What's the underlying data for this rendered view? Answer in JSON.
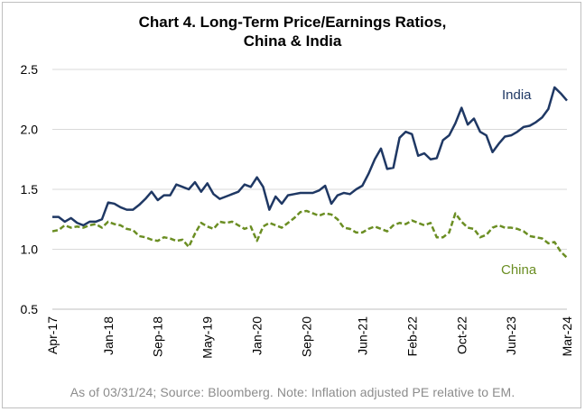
{
  "chart_data": {
    "type": "line",
    "title": "Chart 4. Long-Term Price/Earnings Ratios,\nChina & India",
    "footnote": "As of 03/31/24; Source: Bloomberg. Note: Inflation adjusted PE relative to EM.",
    "xlabel": "",
    "ylabel": "",
    "ylim": [
      0.5,
      2.5
    ],
    "y_ticks": [
      "0.5",
      "1.0",
      "1.5",
      "2.0",
      "2.5"
    ],
    "x_tick_labels": [
      "Apr-17",
      "Jan-18",
      "Sep-18",
      "May-19",
      "Jan-20",
      "Sep-20",
      "Jun-21",
      "Feb-22",
      "Oct-22",
      "Jun-23",
      "Mar-24"
    ],
    "grid": true,
    "colors": {
      "India": "#1f3864",
      "China": "#6b8e23"
    },
    "series": [
      {
        "name": "India",
        "style": "solid",
        "points": [
          [
            "2017-04",
            1.27
          ],
          [
            "2017-05",
            1.27
          ],
          [
            "2017-06",
            1.23
          ],
          [
            "2017-07",
            1.26
          ],
          [
            "2017-08",
            1.22
          ],
          [
            "2017-09",
            1.2
          ],
          [
            "2017-10",
            1.23
          ],
          [
            "2017-11",
            1.23
          ],
          [
            "2017-12",
            1.25
          ],
          [
            "2018-01",
            1.39
          ],
          [
            "2018-02",
            1.38
          ],
          [
            "2018-03",
            1.35
          ],
          [
            "2018-04",
            1.33
          ],
          [
            "2018-05",
            1.33
          ],
          [
            "2018-06",
            1.37
          ],
          [
            "2018-07",
            1.42
          ],
          [
            "2018-08",
            1.48
          ],
          [
            "2018-09",
            1.41
          ],
          [
            "2018-10",
            1.45
          ],
          [
            "2018-11",
            1.45
          ],
          [
            "2018-12",
            1.54
          ],
          [
            "2019-01",
            1.52
          ],
          [
            "2019-02",
            1.5
          ],
          [
            "2019-03",
            1.56
          ],
          [
            "2019-04",
            1.48
          ],
          [
            "2019-05",
            1.55
          ],
          [
            "2019-06",
            1.46
          ],
          [
            "2019-07",
            1.42
          ],
          [
            "2019-08",
            1.44
          ],
          [
            "2019-09",
            1.46
          ],
          [
            "2019-10",
            1.48
          ],
          [
            "2019-11",
            1.54
          ],
          [
            "2019-12",
            1.52
          ],
          [
            "2020-01",
            1.6
          ],
          [
            "2020-02",
            1.52
          ],
          [
            "2020-03",
            1.33
          ],
          [
            "2020-04",
            1.44
          ],
          [
            "2020-05",
            1.38
          ],
          [
            "2020-06",
            1.45
          ],
          [
            "2020-07",
            1.46
          ],
          [
            "2020-08",
            1.47
          ],
          [
            "2020-09",
            1.47
          ],
          [
            "2020-10",
            1.47
          ],
          [
            "2020-11",
            1.49
          ],
          [
            "2020-12",
            1.53
          ],
          [
            "2021-01",
            1.38
          ],
          [
            "2021-02",
            1.45
          ],
          [
            "2021-03",
            1.47
          ],
          [
            "2021-04",
            1.46
          ],
          [
            "2021-05",
            1.5
          ],
          [
            "2021-06",
            1.53
          ],
          [
            "2021-07",
            1.63
          ],
          [
            "2021-08",
            1.75
          ],
          [
            "2021-09",
            1.84
          ],
          [
            "2021-10",
            1.67
          ],
          [
            "2021-11",
            1.68
          ],
          [
            "2021-12",
            1.93
          ],
          [
            "2022-01",
            1.98
          ],
          [
            "2022-02",
            1.96
          ],
          [
            "2022-03",
            1.78
          ],
          [
            "2022-04",
            1.8
          ],
          [
            "2022-05",
            1.75
          ],
          [
            "2022-06",
            1.76
          ],
          [
            "2022-07",
            1.91
          ],
          [
            "2022-08",
            1.95
          ],
          [
            "2022-09",
            2.05
          ],
          [
            "2022-10",
            2.18
          ],
          [
            "2022-11",
            2.04
          ],
          [
            "2022-12",
            2.09
          ],
          [
            "2023-01",
            1.98
          ],
          [
            "2023-02",
            1.95
          ],
          [
            "2023-03",
            1.81
          ],
          [
            "2023-04",
            1.88
          ],
          [
            "2023-05",
            1.94
          ],
          [
            "2023-06",
            1.95
          ],
          [
            "2023-07",
            1.98
          ],
          [
            "2023-08",
            2.02
          ],
          [
            "2023-09",
            2.03
          ],
          [
            "2023-10",
            2.06
          ],
          [
            "2023-11",
            2.1
          ],
          [
            "2023-12",
            2.17
          ],
          [
            "2024-01",
            2.35
          ],
          [
            "2024-02",
            2.3
          ],
          [
            "2024-03",
            2.24
          ]
        ]
      },
      {
        "name": "China",
        "style": "dashed",
        "points": [
          [
            "2017-04",
            1.15
          ],
          [
            "2017-05",
            1.16
          ],
          [
            "2017-06",
            1.2
          ],
          [
            "2017-07",
            1.18
          ],
          [
            "2017-08",
            1.19
          ],
          [
            "2017-09",
            1.18
          ],
          [
            "2017-10",
            1.2
          ],
          [
            "2017-11",
            1.21
          ],
          [
            "2017-12",
            1.18
          ],
          [
            "2018-01",
            1.23
          ],
          [
            "2018-02",
            1.21
          ],
          [
            "2018-03",
            1.2
          ],
          [
            "2018-04",
            1.17
          ],
          [
            "2018-05",
            1.16
          ],
          [
            "2018-06",
            1.11
          ],
          [
            "2018-07",
            1.1
          ],
          [
            "2018-08",
            1.08
          ],
          [
            "2018-09",
            1.07
          ],
          [
            "2018-10",
            1.1
          ],
          [
            "2018-11",
            1.09
          ],
          [
            "2018-12",
            1.07
          ],
          [
            "2019-01",
            1.08
          ],
          [
            "2019-02",
            1.02
          ],
          [
            "2019-03",
            1.13
          ],
          [
            "2019-04",
            1.22
          ],
          [
            "2019-05",
            1.19
          ],
          [
            "2019-06",
            1.17
          ],
          [
            "2019-07",
            1.23
          ],
          [
            "2019-08",
            1.22
          ],
          [
            "2019-09",
            1.23
          ],
          [
            "2019-10",
            1.2
          ],
          [
            "2019-11",
            1.17
          ],
          [
            "2019-12",
            1.19
          ],
          [
            "2020-01",
            1.07
          ],
          [
            "2020-02",
            1.19
          ],
          [
            "2020-03",
            1.22
          ],
          [
            "2020-04",
            1.2
          ],
          [
            "2020-05",
            1.18
          ],
          [
            "2020-06",
            1.22
          ],
          [
            "2020-07",
            1.26
          ],
          [
            "2020-08",
            1.31
          ],
          [
            "2020-09",
            1.32
          ],
          [
            "2020-10",
            1.3
          ],
          [
            "2020-11",
            1.28
          ],
          [
            "2020-12",
            1.3
          ],
          [
            "2021-01",
            1.29
          ],
          [
            "2021-02",
            1.25
          ],
          [
            "2021-03",
            1.18
          ],
          [
            "2021-04",
            1.17
          ],
          [
            "2021-05",
            1.14
          ],
          [
            "2021-06",
            1.14
          ],
          [
            "2021-07",
            1.17
          ],
          [
            "2021-08",
            1.19
          ],
          [
            "2021-09",
            1.17
          ],
          [
            "2021-10",
            1.15
          ],
          [
            "2021-11",
            1.2
          ],
          [
            "2021-12",
            1.22
          ],
          [
            "2022-01",
            1.21
          ],
          [
            "2022-02",
            1.24
          ],
          [
            "2022-03",
            1.22
          ],
          [
            "2022-04",
            1.2
          ],
          [
            "2022-05",
            1.22
          ],
          [
            "2022-06",
            1.1
          ],
          [
            "2022-07",
            1.1
          ],
          [
            "2022-08",
            1.14
          ],
          [
            "2022-09",
            1.3
          ],
          [
            "2022-10",
            1.23
          ],
          [
            "2022-11",
            1.18
          ],
          [
            "2022-12",
            1.17
          ],
          [
            "2023-01",
            1.1
          ],
          [
            "2023-02",
            1.12
          ],
          [
            "2023-03",
            1.18
          ],
          [
            "2023-04",
            1.2
          ],
          [
            "2023-05",
            1.18
          ],
          [
            "2023-06",
            1.18
          ],
          [
            "2023-07",
            1.17
          ],
          [
            "2023-08",
            1.15
          ],
          [
            "2023-09",
            1.11
          ],
          [
            "2023-10",
            1.1
          ],
          [
            "2023-11",
            1.09
          ],
          [
            "2023-12",
            1.05
          ],
          [
            "2024-01",
            1.06
          ],
          [
            "2024-02",
            0.98
          ],
          [
            "2024-03",
            0.93
          ]
        ]
      }
    ]
  }
}
